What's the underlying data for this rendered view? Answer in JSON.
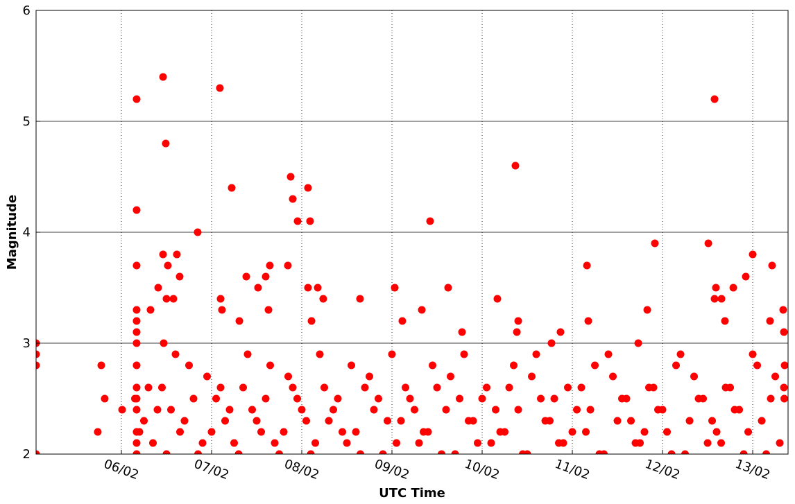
{
  "chart_data": {
    "type": "scatter",
    "xlabel": "UTC Time",
    "ylabel": "Magnitude",
    "xlim": [
      5.054,
      13.392
    ],
    "ylim": [
      2,
      6
    ],
    "xticks": [
      {
        "value": 6,
        "label": "06/02"
      },
      {
        "value": 7,
        "label": "07/02"
      },
      {
        "value": 8,
        "label": "08/02"
      },
      {
        "value": 9,
        "label": "09/02"
      },
      {
        "value": 10,
        "label": "10/02"
      },
      {
        "value": 11,
        "label": "11/02"
      },
      {
        "value": 12,
        "label": "12/02"
      },
      {
        "value": 13,
        "label": "13/02"
      }
    ],
    "yticks": [
      2,
      3,
      4,
      5,
      6
    ],
    "grid": true,
    "color": "#ff0000",
    "x": [
      5.054,
      5.054,
      5.054,
      5.054,
      5.738,
      5.777,
      5.815,
      6.008,
      6.169,
      6.169,
      6.169,
      6.169,
      6.169,
      6.169,
      6.169,
      6.169,
      6.169,
      6.169,
      6.169,
      6.169,
      6.169,
      6.169,
      6.462,
      6.492,
      6.462,
      6.515,
      6.408,
      6.5,
      6.615,
      6.646,
      6.577,
      6.323,
      6.469,
      6.846,
      7.092,
      7.223,
      7.1,
      7.115,
      7.308,
      7.385,
      7.6,
      7.515,
      7.646,
      7.631,
      7.877,
      7.9,
      7.954,
      8.069,
      8.092,
      7.846,
      8.069,
      8.177,
      8.238,
      8.108,
      8.646,
      9.031,
      9.115,
      9.331,
      9.423,
      9.623,
      9.777,
      10.169,
      10.369,
      10.4,
      10.385,
      10.769,
      10.869,
      11.162,
      11.177,
      11.915,
      11.831,
      11.731,
      12.508,
      12.577,
      12.592,
      12.577,
      12.654,
      12.692,
      12.785,
      12.923,
      13.0,
      13.215,
      13.192,
      13.338,
      13.346,
      13.354,
      13.346,
      6.15,
      6.25,
      6.35,
      6.45,
      6.55,
      6.65,
      6.75,
      6.85,
      6.95,
      7.05,
      7.15,
      7.25,
      7.35,
      7.45,
      7.55,
      7.65,
      7.75,
      7.85,
      7.95,
      8.05,
      8.15,
      8.25,
      8.35,
      8.45,
      8.55,
      8.65,
      8.75,
      8.85,
      8.95,
      9.05,
      9.15,
      9.25,
      9.35,
      9.45,
      9.55,
      9.65,
      9.75,
      9.85,
      9.95,
      10.05,
      10.15,
      10.25,
      10.35,
      10.45,
      10.55,
      10.65,
      10.75,
      10.85,
      10.95,
      11.05,
      11.15,
      11.25,
      11.35,
      11.45,
      11.55,
      11.65,
      11.75,
      11.85,
      11.95,
      12.05,
      12.15,
      12.25,
      12.35,
      12.45,
      12.55,
      12.65,
      12.75,
      12.85,
      12.95,
      13.05,
      13.15,
      13.25,
      13.35,
      6.2,
      6.3,
      6.4,
      6.5,
      6.6,
      6.7,
      6.8,
      6.9,
      7.0,
      7.1,
      7.2,
      7.3,
      7.4,
      7.5,
      7.6,
      7.7,
      7.8,
      7.9,
      8.0,
      8.1,
      8.2,
      8.3,
      8.4,
      8.5,
      8.6,
      8.7,
      8.8,
      8.9,
      9.0,
      9.1,
      9.2,
      9.3,
      9.4,
      9.5,
      9.6,
      9.7,
      9.8,
      9.9,
      10.0,
      10.1,
      10.2,
      10.3,
      10.4,
      10.5,
      10.6,
      10.7,
      10.8,
      10.9,
      11.0,
      11.1,
      11.2,
      11.3,
      11.4,
      11.5,
      11.6,
      11.7,
      11.8,
      11.9,
      12.0,
      12.1,
      12.2,
      12.3,
      12.4,
      12.5,
      12.6,
      12.7,
      12.8,
      12.9,
      13.0,
      13.1,
      13.2,
      13.3
    ],
    "values": [
      3.0,
      2.9,
      2.8,
      2.0,
      2.2,
      2.8,
      2.5,
      2.4,
      5.2,
      4.2,
      3.7,
      3.3,
      3.2,
      3.1,
      3.0,
      2.8,
      2.6,
      2.5,
      2.4,
      2.2,
      2.1,
      2.0,
      5.4,
      4.8,
      3.8,
      3.7,
      3.5,
      3.4,
      3.8,
      3.6,
      3.4,
      3.3,
      3.0,
      4.0,
      5.3,
      4.4,
      3.4,
      3.3,
      3.2,
      3.6,
      3.6,
      3.5,
      3.7,
      3.3,
      4.5,
      4.3,
      4.1,
      4.4,
      4.1,
      3.7,
      3.5,
      3.5,
      3.4,
      3.2,
      3.4,
      3.5,
      3.2,
      3.3,
      4.1,
      3.5,
      3.1,
      3.4,
      4.6,
      3.2,
      3.1,
      3.0,
      3.1,
      3.7,
      3.2,
      3.9,
      3.3,
      3.0,
      3.9,
      5.2,
      3.5,
      3.4,
      3.4,
      3.2,
      3.5,
      3.6,
      3.8,
      3.7,
      3.2,
      3.3,
      3.1,
      2.8,
      2.6,
      2.5,
      2.3,
      2.1,
      2.6,
      2.4,
      2.2,
      2.8,
      2.0,
      2.7,
      2.5,
      2.3,
      2.1,
      2.6,
      2.4,
      2.2,
      2.8,
      2.0,
      2.7,
      2.5,
      2.3,
      2.1,
      2.6,
      2.4,
      2.2,
      2.8,
      2.0,
      2.7,
      2.5,
      2.3,
      2.1,
      2.6,
      2.4,
      2.2,
      2.8,
      2.0,
      2.7,
      2.5,
      2.3,
      2.1,
      2.6,
      2.4,
      2.2,
      2.8,
      2.0,
      2.7,
      2.5,
      2.3,
      2.1,
      2.6,
      2.4,
      2.2,
      2.8,
      2.0,
      2.7,
      2.5,
      2.3,
      2.1,
      2.6,
      2.4,
      2.2,
      2.8,
      2.0,
      2.7,
      2.5,
      2.3,
      2.1,
      2.6,
      2.4,
      2.2,
      2.8,
      2.0,
      2.7,
      2.5,
      2.2,
      2.6,
      2.4,
      2.0,
      2.9,
      2.3,
      2.5,
      2.1,
      2.2,
      2.6,
      2.4,
      2.0,
      2.9,
      2.3,
      2.5,
      2.1,
      2.2,
      2.6,
      2.4,
      2.0,
      2.9,
      2.3,
      2.5,
      2.1,
      2.2,
      2.6,
      2.4,
      2.0,
      2.9,
      2.3,
      2.5,
      2.1,
      2.2,
      2.6,
      2.4,
      2.0,
      2.9,
      2.3,
      2.5,
      2.1,
      2.2,
      2.6,
      2.4,
      2.0,
      2.9,
      2.3,
      2.5,
      2.1,
      2.2,
      2.6,
      2.4,
      2.0,
      2.9,
      2.3,
      2.5,
      2.1,
      2.2,
      2.6,
      2.4,
      2.0,
      2.9,
      2.3,
      2.5,
      2.1,
      2.2,
      2.6,
      2.4,
      2.0,
      2.9,
      2.3,
      2.5,
      2.1
    ]
  }
}
